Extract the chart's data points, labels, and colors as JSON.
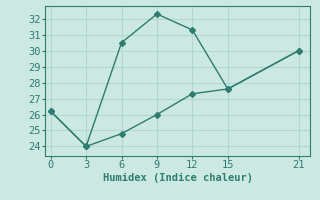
{
  "line1_x": [
    0,
    3,
    6,
    9,
    12,
    15,
    21
  ],
  "line1_y": [
    26.2,
    24.0,
    30.5,
    32.3,
    31.3,
    27.6,
    30.0
  ],
  "line2_x": [
    0,
    3,
    6,
    9,
    12,
    15,
    21
  ],
  "line2_y": [
    26.2,
    24.0,
    24.8,
    26.0,
    27.3,
    27.6,
    30.0
  ],
  "line_color": "#2e7d6e",
  "bg_color": "#cce8e3",
  "grid_color": "#b0d8d0",
  "xlabel": "Humidex (Indice chaleur)",
  "xlim": [
    -0.5,
    22
  ],
  "ylim": [
    23.4,
    32.8
  ],
  "xticks": [
    0,
    3,
    6,
    9,
    12,
    15,
    21
  ],
  "yticks": [
    24,
    25,
    26,
    27,
    28,
    29,
    30,
    31,
    32
  ],
  "marker": "D",
  "marker_size": 3,
  "line_width": 1.0,
  "font_size": 7.5
}
